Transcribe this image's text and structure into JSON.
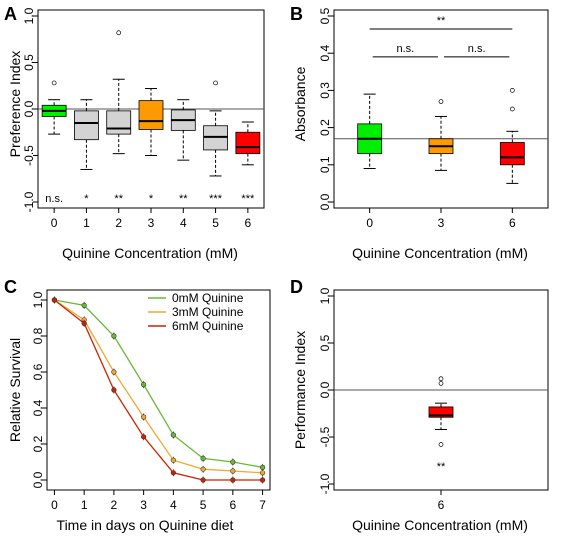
{
  "chart_data": [
    {
      "panel": "A",
      "type": "box",
      "xlabel": "Quinine Concentration (mM)",
      "ylabel": "Preference Index",
      "ylim": [
        -1.0,
        1.0
      ],
      "yticks": [
        "-1.0",
        "-0.5",
        "0.0",
        "0.5",
        "1.0"
      ],
      "reference_line_y": 0,
      "categories": [
        "0",
        "1",
        "2",
        "3",
        "4",
        "5",
        "6"
      ],
      "significance": [
        "n.s.",
        "*",
        "**",
        "*",
        "**",
        "***",
        "***"
      ],
      "colors": [
        "#00ee00",
        "#d3d3d3",
        "#d3d3d3",
        "#ff9900",
        "#d3d3d3",
        "#d3d3d3",
        "#ff0000"
      ],
      "boxes": [
        {
          "min": -0.27,
          "q1": -0.08,
          "median": -0.02,
          "q3": 0.04,
          "max": 0.1,
          "outliers": [
            0.28
          ]
        },
        {
          "min": -0.65,
          "q1": -0.33,
          "median": -0.15,
          "q3": -0.02,
          "max": 0.1,
          "outliers": []
        },
        {
          "min": -0.48,
          "q1": -0.27,
          "median": -0.21,
          "q3": -0.02,
          "max": 0.32,
          "outliers": [
            0.82
          ]
        },
        {
          "min": -0.5,
          "q1": -0.22,
          "median": -0.13,
          "q3": 0.09,
          "max": 0.22,
          "outliers": []
        },
        {
          "min": -0.55,
          "q1": -0.23,
          "median": -0.12,
          "q3": -0.01,
          "max": 0.1,
          "outliers": []
        },
        {
          "min": -0.72,
          "q1": -0.44,
          "median": -0.3,
          "q3": -0.18,
          "max": -0.02,
          "outliers": [
            0.28
          ]
        },
        {
          "min": -0.6,
          "q1": -0.48,
          "median": -0.41,
          "q3": -0.25,
          "max": -0.14,
          "outliers": []
        }
      ]
    },
    {
      "panel": "B",
      "type": "box",
      "xlabel": "Quinine Concentration (mM)",
      "ylabel": "Absorbance",
      "ylim": [
        0.0,
        0.5
      ],
      "yticks": [
        "0.0",
        "0.1",
        "0.2",
        "0.3",
        "0.4",
        "0.5"
      ],
      "reference_line_y": 0.17,
      "categories": [
        "0",
        "3",
        "6"
      ],
      "colors": [
        "#00ee00",
        "#ff9900",
        "#ff0000"
      ],
      "boxes": [
        {
          "min": 0.09,
          "q1": 0.13,
          "median": 0.17,
          "q3": 0.21,
          "max": 0.29,
          "outliers": []
        },
        {
          "min": 0.085,
          "q1": 0.13,
          "median": 0.15,
          "q3": 0.17,
          "max": 0.23,
          "outliers": [
            0.27
          ]
        },
        {
          "min": 0.05,
          "q1": 0.1,
          "median": 0.12,
          "q3": 0.16,
          "max": 0.19,
          "outliers": [
            0.25,
            0.3
          ]
        }
      ],
      "brackets": [
        {
          "from": "0",
          "to": "6",
          "y": 0.465,
          "label": "**"
        },
        {
          "from": "0",
          "to": "3",
          "y": 0.39,
          "label": "n.s."
        },
        {
          "from": "3",
          "to": "6",
          "y": 0.39,
          "label": "n.s."
        }
      ]
    },
    {
      "panel": "C",
      "type": "line",
      "xlabel": "Time in days on Quinine diet",
      "ylabel": "Relative Survival",
      "x": [
        0,
        1,
        2,
        3,
        4,
        5,
        6,
        7
      ],
      "ylim": [
        0.0,
        1.0
      ],
      "yticks": [
        "0.0",
        "0.2",
        "0.4",
        "0.6",
        "0.8",
        "1.0"
      ],
      "xticks": [
        "0",
        "1",
        "2",
        "3",
        "4",
        "5",
        "6",
        "7"
      ],
      "legend_position": "top-right",
      "series": [
        {
          "name": "0mM Quinine",
          "color": "#66bb33",
          "values": [
            1.0,
            0.97,
            0.8,
            0.53,
            0.25,
            0.12,
            0.1,
            0.07
          ]
        },
        {
          "name": "3mM Quinine",
          "color": "#f0a830",
          "values": [
            1.0,
            0.89,
            0.6,
            0.35,
            0.11,
            0.06,
            0.05,
            0.04
          ]
        },
        {
          "name": "6mM Quinine",
          "color": "#cc2200",
          "values": [
            1.0,
            0.87,
            0.5,
            0.24,
            0.04,
            0.0,
            0.0,
            0.0
          ]
        }
      ]
    },
    {
      "panel": "D",
      "type": "box",
      "xlabel": "Quinine Concentration (mM)",
      "ylabel": "Performance Index",
      "ylim": [
        -1.0,
        1.0
      ],
      "yticks": [
        "-1.0",
        "-0.5",
        "0.0",
        "0.5",
        "1.0"
      ],
      "reference_line_y": 0,
      "categories": [
        "6"
      ],
      "significance": [
        "**"
      ],
      "colors": [
        "#ff0000"
      ],
      "boxes": [
        {
          "min": -0.42,
          "q1": -0.29,
          "median": -0.27,
          "q3": -0.18,
          "max": -0.14,
          "outliers": [
            0.12,
            0.07,
            -0.58
          ]
        }
      ]
    }
  ]
}
